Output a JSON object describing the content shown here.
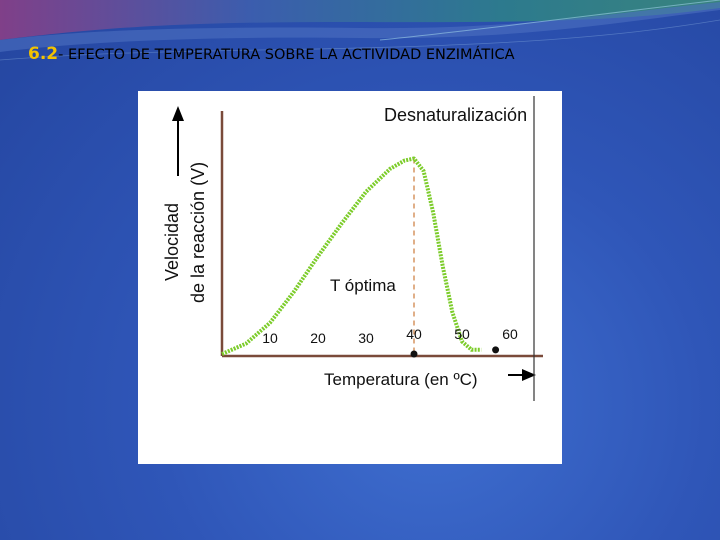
{
  "slide": {
    "title_number": "6.2",
    "title_text": "- EFECTO DE TEMPERATURA SOBRE LA ACTIVIDAD ENZIMÁTICA"
  },
  "colors": {
    "background": "#2f56b8",
    "title_number": "#f2c200",
    "curve": "#7ccc2a",
    "axes": "#7a4a3a"
  },
  "chart_data": {
    "type": "line",
    "title": "Desnaturalización",
    "xlabel": "Temperatura (en ºC)",
    "ylabel_line1": "Velocidad",
    "ylabel_line2": "de la reacción (V)",
    "x_ticks": [
      "10",
      "20",
      "30",
      "40",
      "50",
      "60"
    ],
    "xlim": [
      0,
      65
    ],
    "ylim": [
      0,
      1
    ],
    "annotations": {
      "optimum": "T óptima"
    },
    "optimum_temperature": 40,
    "series": [
      {
        "x": [
          0,
          5,
          10,
          15,
          20,
          25,
          30,
          35,
          38,
          40,
          42,
          44,
          46,
          48,
          50,
          52,
          54
        ],
        "values": [
          0.0,
          0.05,
          0.15,
          0.3,
          0.47,
          0.63,
          0.78,
          0.89,
          0.93,
          0.94,
          0.88,
          0.68,
          0.42,
          0.2,
          0.06,
          0.02,
          0.02
        ]
      }
    ],
    "markers": [
      {
        "x": 40,
        "y": 0
      },
      {
        "x": 57,
        "y": 0.02
      }
    ],
    "grid": false
  }
}
